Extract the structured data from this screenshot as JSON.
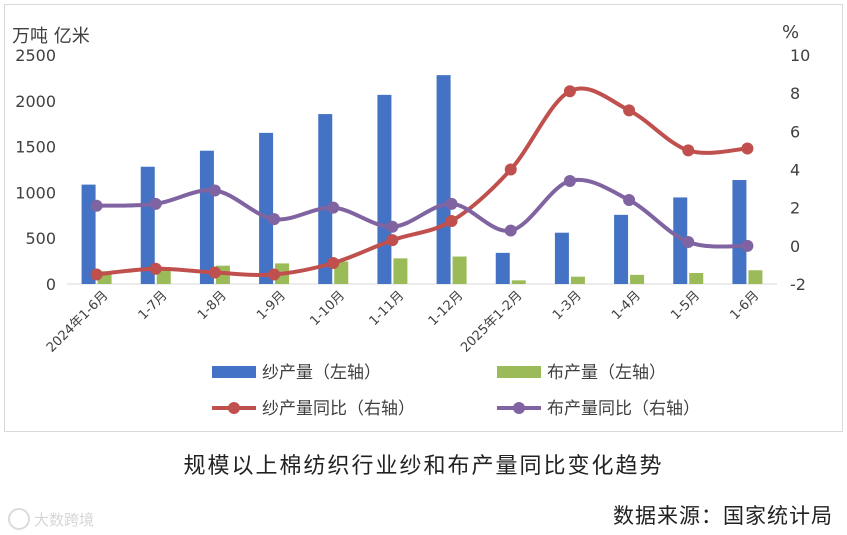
{
  "chart_data": {
    "type": "bar+line",
    "categories": [
      "2024年1-6月",
      "1-7月",
      "1-8月",
      "1-9月",
      "1-10月",
      "1-11月",
      "1-12月",
      "2025年1-2月",
      "1-3月",
      "1-4月",
      "1-5月",
      "1-6月"
    ],
    "left_axis": {
      "unit": "万吨 亿米",
      "min": 0,
      "max": 2500,
      "step": 500,
      "ticks": [
        "0",
        "500",
        "1000",
        "1500",
        "2000",
        "2500"
      ]
    },
    "right_axis": {
      "unit": "%",
      "min": -2,
      "max": 10,
      "step": 2,
      "ticks": [
        "-2",
        "0",
        "2",
        "4",
        "6",
        "8",
        "10"
      ]
    },
    "series": [
      {
        "name": "纱产量（左轴）",
        "type": "bar",
        "axis": "left",
        "color": "#4472c4",
        "values": [
          1085,
          1280,
          1455,
          1650,
          1855,
          2065,
          2280,
          340,
          560,
          755,
          945,
          1135
        ]
      },
      {
        "name": "布产量（左轴）",
        "type": "bar",
        "axis": "left",
        "color": "#9bbb59",
        "values": [
          140,
          155,
          200,
          225,
          245,
          280,
          300,
          40,
          80,
          100,
          120,
          150
        ]
      },
      {
        "name": "纱产量同比（右轴）",
        "type": "line",
        "axis": "right",
        "color": "#c0504d",
        "values": [
          -1.5,
          -1.2,
          -1.4,
          -1.5,
          -0.9,
          0.3,
          1.3,
          4.0,
          8.1,
          7.1,
          5.0,
          5.1
        ]
      },
      {
        "name": "布产量同比（右轴）",
        "type": "line",
        "axis": "right",
        "color": "#8064a2",
        "values": [
          2.1,
          2.2,
          2.9,
          1.4,
          2.0,
          1.0,
          2.2,
          0.8,
          3.4,
          2.4,
          0.2,
          0.0
        ]
      }
    ],
    "legend_position": "bottom"
  },
  "caption": "规模以上棉纺织行业纱和布产量同比变化趋势",
  "source": "数据来源：国家统计局",
  "watermark": "大数跨境"
}
